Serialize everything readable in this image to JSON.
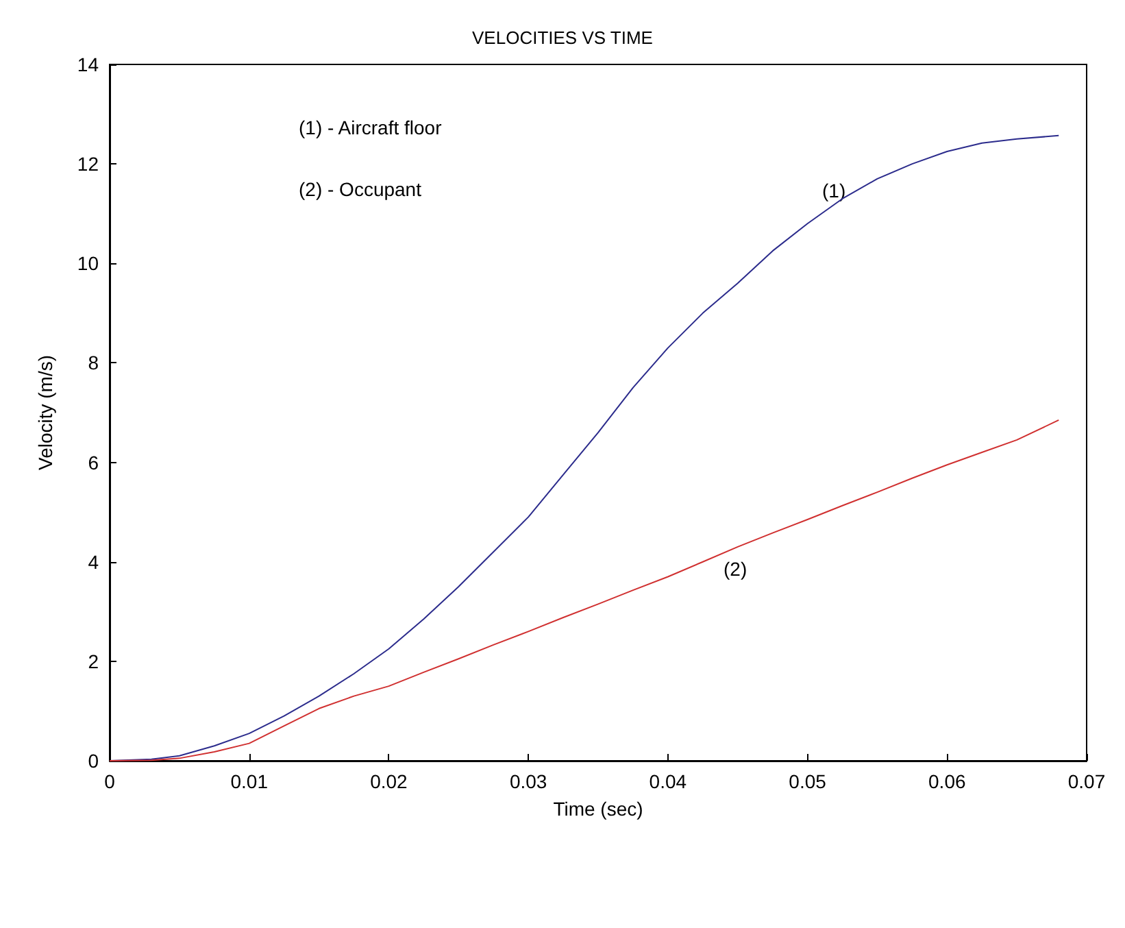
{
  "chart_data": {
    "type": "line",
    "title": "VELOCITIES VS TIME",
    "xlabel": "Time (sec)",
    "ylabel": "Velocity (m/s)",
    "x": [
      0,
      0.003,
      0.005,
      0.0075,
      0.01,
      0.0125,
      0.015,
      0.0175,
      0.02,
      0.0225,
      0.025,
      0.0275,
      0.03,
      0.0325,
      0.035,
      0.0375,
      0.04,
      0.0425,
      0.045,
      0.0475,
      0.05,
      0.0525,
      0.055,
      0.0575,
      0.06,
      0.0625,
      0.065,
      0.068
    ],
    "series": [
      {
        "color": "#2b2b8c",
        "values": [
          0,
          0.03,
          0.1,
          0.3,
          0.55,
          0.9,
          1.3,
          1.75,
          2.25,
          2.85,
          3.5,
          4.2,
          4.9,
          5.75,
          6.6,
          7.5,
          8.3,
          9.0,
          9.6,
          10.25,
          10.8,
          11.3,
          11.7,
          12.0,
          12.25,
          12.42,
          12.5,
          12.57
        ]
      },
      {
        "color": "#d03030",
        "values": [
          0,
          0.01,
          0.05,
          0.18,
          0.35,
          0.7,
          1.05,
          1.3,
          1.5,
          1.78,
          2.05,
          2.33,
          2.6,
          2.88,
          3.15,
          3.43,
          3.7,
          4.0,
          4.3,
          4.58,
          4.85,
          5.13,
          5.4,
          5.68,
          5.95,
          6.2,
          6.45,
          6.85
        ]
      }
    ],
    "xlim": [
      0,
      0.07
    ],
    "ylim": [
      0,
      14
    ],
    "xticks": [
      0,
      0.01,
      0.02,
      0.03,
      0.04,
      0.05,
      0.06,
      0.07
    ],
    "yticks": [
      0,
      2,
      4,
      6,
      8,
      10,
      12,
      14
    ],
    "grid": false,
    "marker": "none",
    "line_style": "solid",
    "annotations": [
      "(1) - Aircraft floor",
      "(2) - Occupant",
      "(1)",
      "(2)"
    ]
  }
}
